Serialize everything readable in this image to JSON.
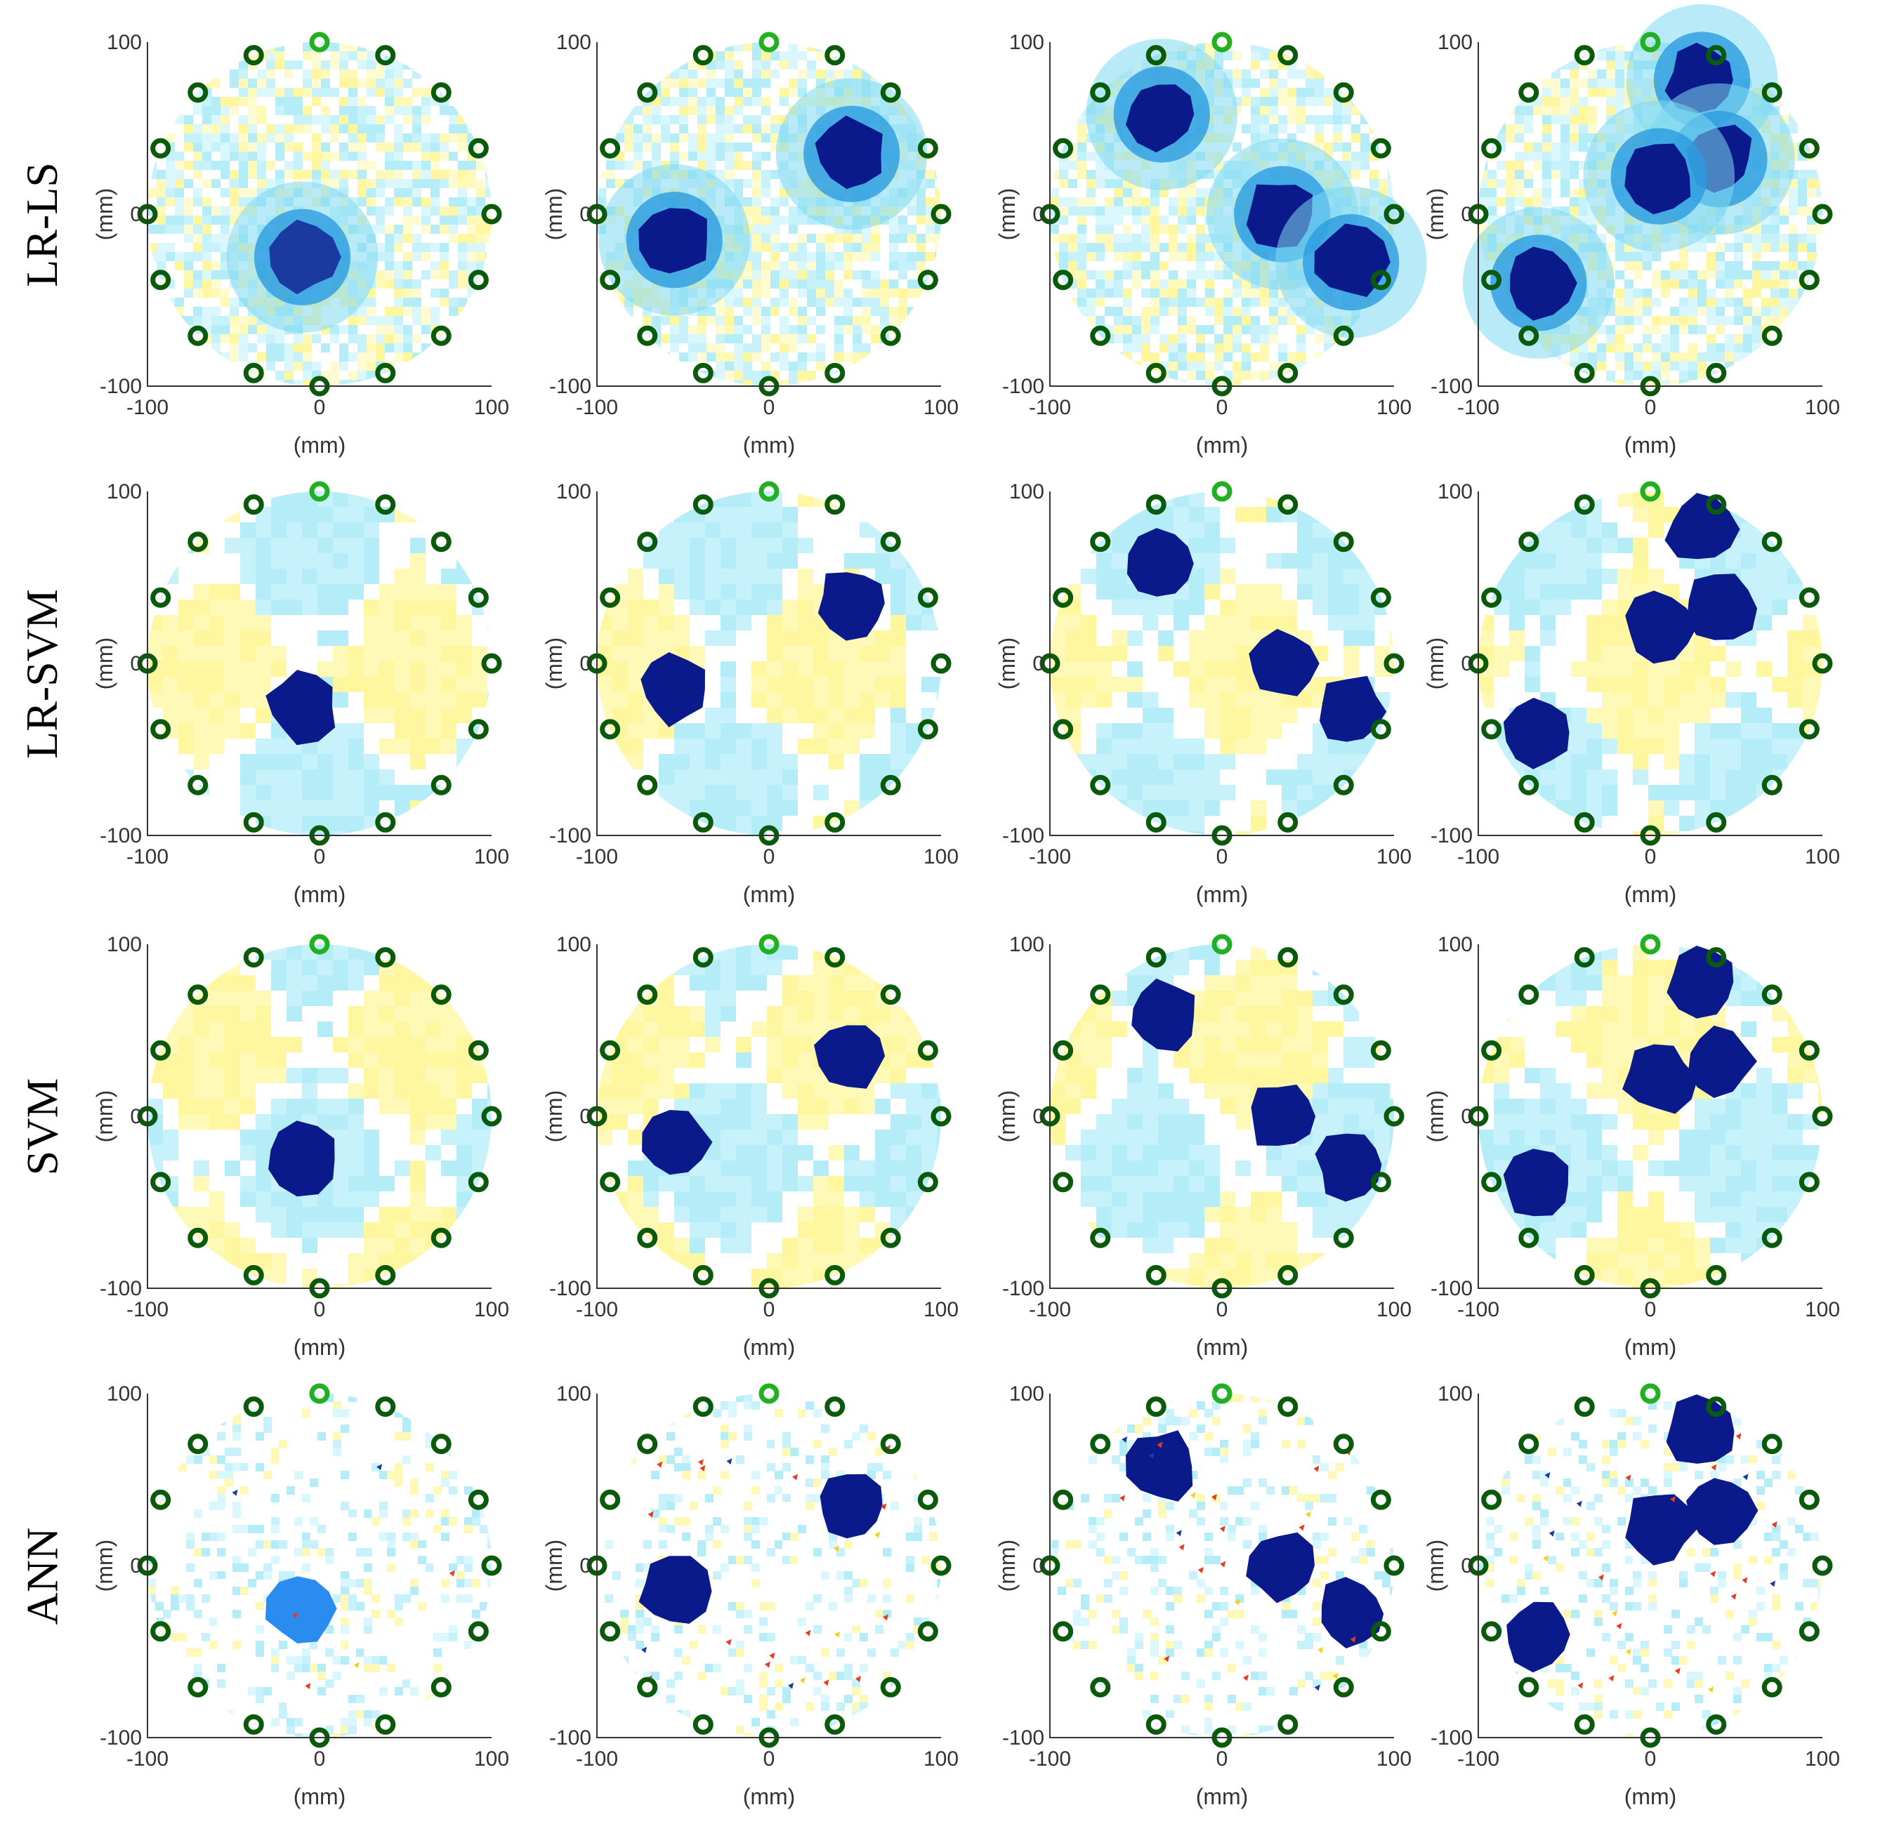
{
  "figure": {
    "rows": [
      "LR-LS",
      "LR-SVM",
      "SVM",
      "ANN"
    ],
    "axis": {
      "x_label": "(mm)",
      "y_label": "(mm)",
      "x_ticks": [
        "-100",
        "0",
        "100"
      ],
      "y_ticks": [
        "100",
        "0",
        "-100"
      ],
      "range": [
        -100,
        100
      ]
    },
    "electrodes": {
      "count": 16,
      "radius_mm": 100,
      "color": "#0b5a0b",
      "first_color": "#22b022"
    },
    "colors": {
      "background_positive": "#fff9b8",
      "background_mid": "#ffffff",
      "background_negative": "#c7f2fb",
      "inclusion_light": "#2b8cf0",
      "inclusion_dark": "#0a1a8a",
      "artifact_red": "#e83a1c"
    },
    "inclusions_by_column_mm": [
      [
        [
          -10,
          -25
        ]
      ],
      [
        [
          -55,
          -15
        ],
        [
          48,
          35
        ]
      ],
      [
        [
          -35,
          58
        ],
        [
          35,
          0
        ],
        [
          75,
          -28
        ]
      ],
      [
        [
          30,
          78
        ],
        [
          40,
          32
        ],
        [
          5,
          22
        ],
        [
          -65,
          -40
        ]
      ]
    ],
    "inclusion_radius_mm": 20
  }
}
